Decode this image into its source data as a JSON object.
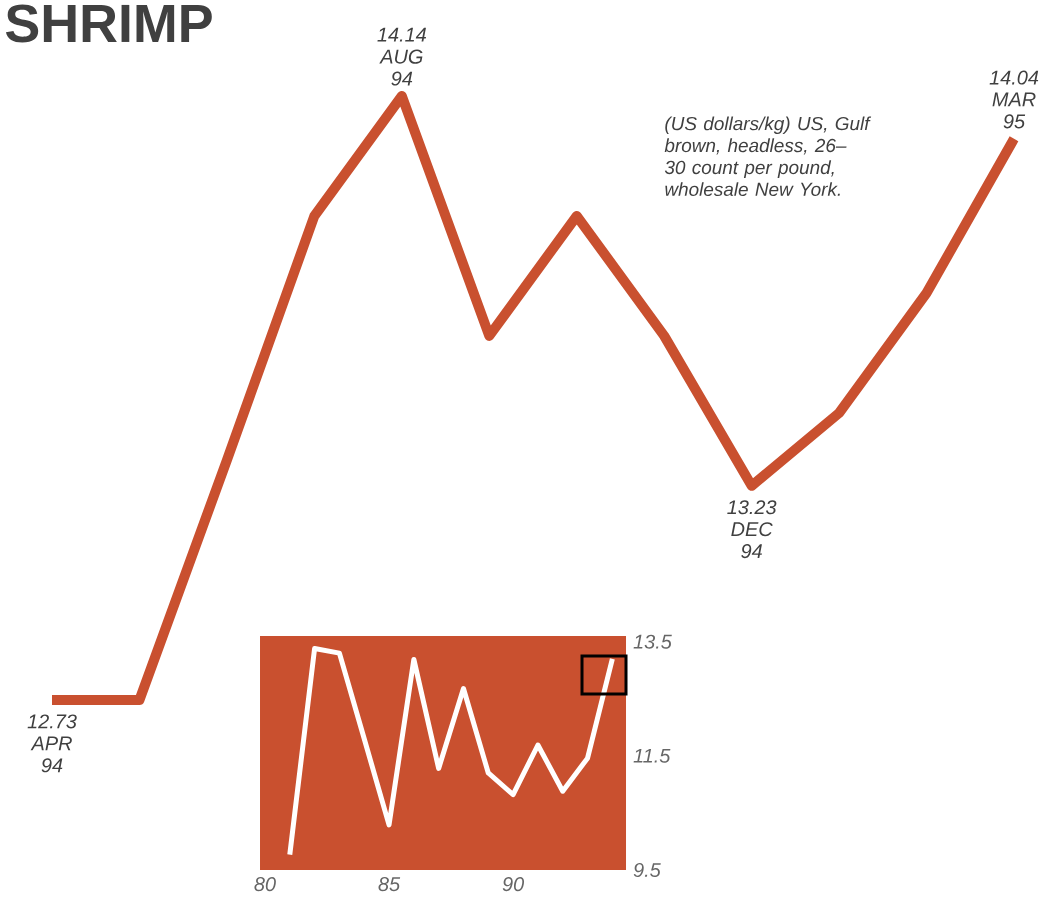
{
  "chart_data": [
    {
      "type": "line",
      "title": "SHRIMP",
      "color": "#c9502f",
      "categories": [
        "APR 94",
        null,
        null,
        null,
        "AUG 94",
        null,
        null,
        null,
        "DEC 94",
        null,
        null,
        "MAR 95"
      ],
      "values": [
        12.73,
        12.73,
        13.29,
        13.86,
        14.14,
        13.58,
        13.86,
        13.58,
        13.23,
        13.4,
        13.68,
        14.04
      ],
      "value_labels": [
        "12.73",
        null,
        null,
        null,
        "14.14",
        null,
        null,
        null,
        "13.23",
        null,
        null,
        "14.04"
      ],
      "annotations": [
        "(US dollars/kg) US, Gulf brown, headless, 26–30 count per pound, wholesale New York."
      ],
      "tick_labels": false
    },
    {
      "type": "line",
      "color": "#ffffff",
      "x": [
        81,
        82,
        83,
        84,
        85,
        86,
        87,
        88,
        89,
        90,
        91,
        92,
        93,
        94
      ],
      "values": [
        9.77,
        13.38,
        13.3,
        11.8,
        10.29,
        13.19,
        11.28,
        12.68,
        11.2,
        10.82,
        11.69,
        10.88,
        11.46,
        13.2
      ],
      "xlim": [
        79.8,
        94.55
      ],
      "xticks": [
        80,
        85,
        90
      ],
      "ylim": [
        9.5,
        13.6
      ],
      "yticks": [
        9.5,
        11.5,
        13.5
      ]
    }
  ]
}
